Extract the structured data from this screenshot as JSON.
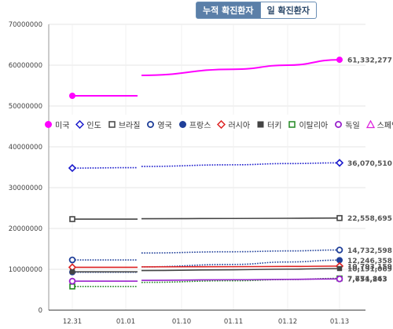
{
  "tabs": {
    "cumulative_label": "누적 확진환자",
    "daily_label": "일 확진환자"
  },
  "chart_data": {
    "type": "line",
    "title": "",
    "xlabel": "",
    "ylabel": "",
    "categories": [
      "12.31",
      "01.01",
      "01.10",
      "01.11",
      "01.12",
      "01.13"
    ],
    "ylim": [
      0,
      70000000
    ],
    "yticks": [
      0,
      10000000,
      20000000,
      30000000,
      40000000,
      50000000,
      60000000,
      70000000
    ],
    "ytick_labels": [
      "0",
      "10000000",
      "20000000",
      "30000000",
      "40000000",
      "50000000",
      "60000000",
      "70000000"
    ],
    "grid": true,
    "legend_placement": "middle",
    "series": [
      {
        "name": "미국",
        "color": "#ff00ff",
        "marker": "dot",
        "style": "solid",
        "values": [
          52500000,
          52500000,
          57500000,
          59000000,
          60000000,
          61332277
        ],
        "end_label": "61,332,277"
      },
      {
        "name": "인도",
        "color": "#1a1acc",
        "marker": "diamond",
        "style": "dotted",
        "values": [
          34800000,
          34900000,
          35200000,
          35600000,
          35900000,
          36070510
        ],
        "end_label": "36,070,510"
      },
      {
        "name": "브라질",
        "color": "#444444",
        "marker": "square-open",
        "style": "solid",
        "values": [
          22300000,
          22300000,
          22400000,
          22450000,
          22500000,
          22558695
        ],
        "end_label": "22,558,695"
      },
      {
        "name": "영국",
        "color": "#1f3f99",
        "marker": "circle-open",
        "style": "dotted",
        "values": [
          12300000,
          12300000,
          14000000,
          14300000,
          14500000,
          14732598
        ],
        "end_label": "14,732,598"
      },
      {
        "name": "프랑스",
        "color": "#1f3f99",
        "marker": "dot",
        "style": "dotted",
        "values": [
          9300000,
          9300000,
          10600000,
          11200000,
          11800000,
          12246358
        ],
        "end_label": "12,246,358"
      },
      {
        "name": "러시아",
        "color": "#dd2222",
        "marker": "diamond",
        "style": "solid",
        "values": [
          10500000,
          10500000,
          10600000,
          10650000,
          10700000,
          10793159
        ],
        "end_label": "10,793,159"
      },
      {
        "name": "터키",
        "color": "#444444",
        "marker": "square",
        "style": "solid",
        "values": [
          9400000,
          9400000,
          9700000,
          9900000,
          10050000,
          10191069
        ],
        "end_label": "10,191,069"
      },
      {
        "name": "이탈리아",
        "color": "#228822",
        "marker": "square-open",
        "style": "dotted",
        "values": [
          5800000,
          5800000,
          6800000,
          7200000,
          7500000,
          7774863
        ],
        "end_label": "7,774,863"
      },
      {
        "name": "독일",
        "color": "#9922cc",
        "marker": "circle-open",
        "style": "solid",
        "values": [
          7100000,
          7100000,
          7300000,
          7450000,
          7550000,
          7651243
        ],
        "end_label": "7,651,243"
      },
      {
        "name": "스페인",
        "color": "#dd22dd",
        "marker": "triangle-open",
        "style": "solid",
        "values": [
          null,
          null,
          null,
          null,
          null,
          null
        ],
        "end_label": ""
      }
    ]
  }
}
